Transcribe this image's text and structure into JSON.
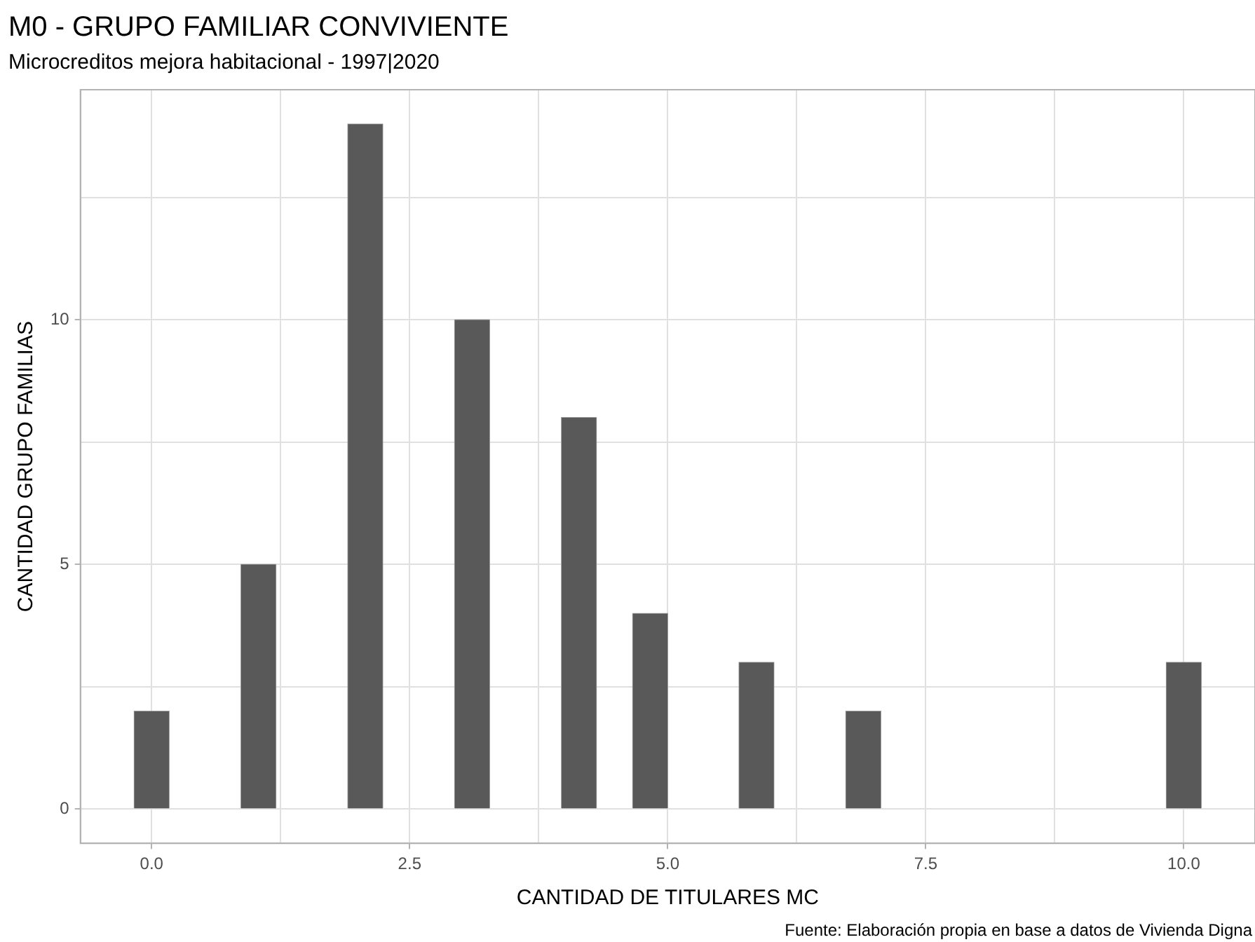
{
  "chart_data": {
    "type": "histogram",
    "title": "M0 - GRUPO FAMILIAR CONVIVIENTE",
    "subtitle": "Microcreditos mejora habitacional - 1997|2020",
    "xlabel": "CANTIDAD DE TITULARES MC",
    "ylabel": "CANTIDAD GRUPO FAMILIAS",
    "bins": [
      -0.17,
      0.17,
      0.52,
      0.86,
      1.21,
      1.55,
      1.9,
      2.24,
      2.59,
      2.93,
      3.28,
      3.62,
      3.97,
      4.31,
      4.66,
      5.0,
      5.34,
      5.69,
      6.03,
      6.38,
      6.72,
      7.07,
      7.41,
      7.76,
      8.1,
      8.45,
      8.79,
      9.14,
      9.48,
      9.83,
      10.17
    ],
    "values": [
      2,
      0,
      0,
      5,
      0,
      0,
      14,
      0,
      0,
      10,
      0,
      0,
      8,
      0,
      4,
      0,
      0,
      3,
      0,
      0,
      2,
      0,
      0,
      0,
      0,
      0,
      0,
      0,
      0,
      3
    ],
    "color": "#595959",
    "xlim": [
      -0.69,
      10.69
    ],
    "xticks": [
      {
        "value": 0,
        "label": "0.0"
      },
      {
        "value": 1.25,
        "label": null
      },
      {
        "value": 2.5,
        "label": "2.5"
      },
      {
        "value": 3.75,
        "label": null
      },
      {
        "value": 5,
        "label": "5.0"
      },
      {
        "value": 6.25,
        "label": null
      },
      {
        "value": 7.5,
        "label": "7.5"
      },
      {
        "value": 8.75,
        "label": null
      },
      {
        "value": 10,
        "label": "10.0"
      }
    ],
    "ylim": [
      -0.7,
      14.7
    ],
    "yticks": [
      0,
      {
        "value": 2.5,
        "label": null
      },
      5,
      {
        "value": 7.5,
        "label": null
      },
      10,
      {
        "value": 12.5,
        "label": null
      }
    ],
    "grid": true,
    "annotations": [
      "Fuente: Elaboración propia en base a datos de Vivienda Digna"
    ]
  }
}
